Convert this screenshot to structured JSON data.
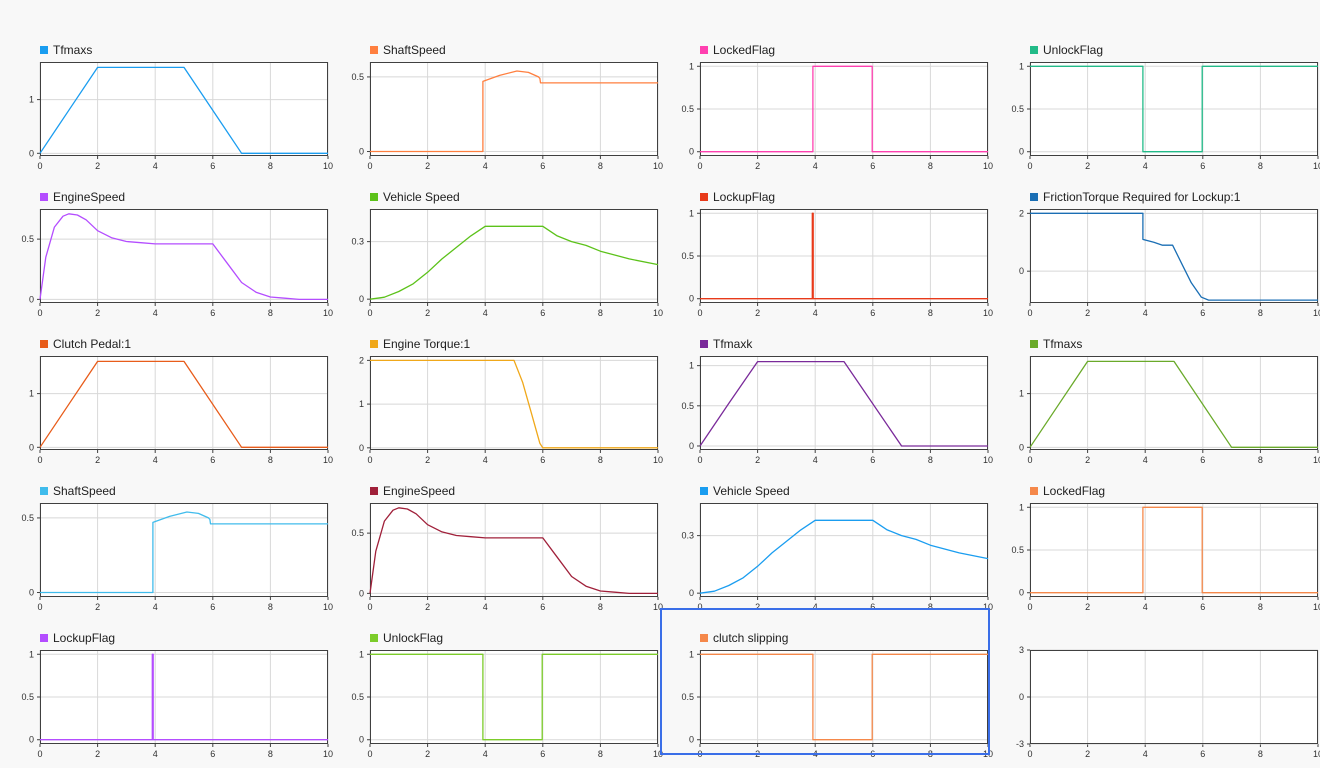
{
  "view": {
    "selected_panel": 18
  },
  "chart_data": [
    {
      "type": "line",
      "title": "Tfmaxs",
      "color": "#1a9df0",
      "xlim": [
        0,
        10
      ],
      "ylim": [
        -0.05,
        1.7
      ],
      "yticks": [
        0,
        1
      ],
      "xticks": [
        0,
        2,
        4,
        6,
        8,
        10
      ],
      "series": [
        {
          "name": "Tfmaxs",
          "x": [
            0,
            1,
            2,
            5,
            7,
            10
          ],
          "y": [
            0,
            0.8,
            1.6,
            1.6,
            0,
            0
          ]
        }
      ]
    },
    {
      "type": "line",
      "title": "ShaftSpeed",
      "color": "#ff7f3f",
      "xlim": [
        0,
        10
      ],
      "ylim": [
        -0.03,
        0.6
      ],
      "yticks": [
        0,
        0.5
      ],
      "xticks": [
        0,
        2,
        4,
        6,
        8,
        10
      ],
      "series": [
        {
          "name": "ShaftSpeed",
          "x": [
            0,
            3.92,
            3.92,
            4.5,
            5.1,
            5.5,
            5.85,
            5.9,
            5.92,
            10
          ],
          "y": [
            0,
            0,
            0.47,
            0.51,
            0.54,
            0.53,
            0.5,
            0.49,
            0.46,
            0.46
          ]
        }
      ]
    },
    {
      "type": "line",
      "title": "LockedFlag",
      "color": "#ff40b0",
      "xlim": [
        0,
        10
      ],
      "ylim": [
        -0.05,
        1.05
      ],
      "yticks": [
        0,
        0.5,
        1.0
      ],
      "xticks": [
        0,
        2,
        4,
        6,
        8,
        10
      ],
      "series": [
        {
          "name": "LockedFlag",
          "x": [
            0,
            3.92,
            3.92,
            5.98,
            5.98,
            10
          ],
          "y": [
            0,
            0,
            1,
            1,
            0,
            0
          ]
        }
      ]
    },
    {
      "type": "line",
      "title": "UnlockFlag",
      "color": "#22bb88",
      "xlim": [
        0,
        10
      ],
      "ylim": [
        -0.05,
        1.05
      ],
      "yticks": [
        0,
        0.5,
        1.0
      ],
      "xticks": [
        0,
        2,
        4,
        6,
        8,
        10
      ],
      "series": [
        {
          "name": "UnlockFlag",
          "x": [
            0,
            3.92,
            3.92,
            5.98,
            5.98,
            10
          ],
          "y": [
            1,
            1,
            0,
            0,
            1,
            1
          ]
        }
      ]
    },
    {
      "type": "line",
      "title": "EngineSpeed",
      "color": "#b44dff",
      "xlim": [
        0,
        10
      ],
      "ylim": [
        -0.03,
        0.75
      ],
      "yticks": [
        0,
        0.5
      ],
      "xticks": [
        0,
        2,
        4,
        6,
        8,
        10
      ],
      "series": [
        {
          "name": "EngineSpeed",
          "x": [
            0,
            0.2,
            0.5,
            0.8,
            1,
            1.3,
            1.6,
            2,
            2.5,
            3,
            3.5,
            4,
            4.5,
            5,
            5.5,
            6,
            6.5,
            7,
            7.5,
            8,
            8.5,
            9,
            9.5,
            10
          ],
          "y": [
            0,
            0.35,
            0.6,
            0.69,
            0.71,
            0.7,
            0.66,
            0.57,
            0.51,
            0.48,
            0.47,
            0.46,
            0.46,
            0.46,
            0.46,
            0.46,
            0.3,
            0.14,
            0.06,
            0.02,
            0.01,
            0,
            0,
            0
          ]
        }
      ]
    },
    {
      "type": "line",
      "title": "Vehicle Speed",
      "color": "#5cc21a",
      "xlim": [
        0,
        10
      ],
      "ylim": [
        -0.02,
        0.47
      ],
      "yticks": [
        0,
        0.3
      ],
      "xticks": [
        0,
        2,
        4,
        6,
        8,
        10
      ],
      "series": [
        {
          "name": "Vehicle Speed",
          "x": [
            0,
            0.5,
            1,
            1.5,
            2,
            2.5,
            3,
            3.5,
            4,
            5,
            6,
            6.5,
            7,
            7.5,
            8,
            9,
            10
          ],
          "y": [
            0,
            0.01,
            0.04,
            0.08,
            0.14,
            0.21,
            0.27,
            0.33,
            0.38,
            0.38,
            0.38,
            0.33,
            0.3,
            0.28,
            0.25,
            0.21,
            0.18
          ]
        }
      ]
    },
    {
      "type": "line",
      "title": "LockupFlag",
      "color": "#e83a1a",
      "xlim": [
        0,
        10
      ],
      "ylim": [
        -0.05,
        1.05
      ],
      "yticks": [
        0,
        0.5,
        1.0
      ],
      "xticks": [
        0,
        2,
        4,
        6,
        8,
        10
      ],
      "series": [
        {
          "name": "LockupFlag",
          "x": [
            0,
            3.9,
            3.9,
            3.93,
            3.93,
            10
          ],
          "y": [
            0,
            0,
            1,
            1,
            0,
            0
          ]
        }
      ]
    },
    {
      "type": "line",
      "title": "FrictionTorque Required for Lockup:1",
      "color": "#1a6eb4",
      "xlim": [
        0,
        10
      ],
      "ylim": [
        -1.1,
        2.15
      ],
      "yticks": [
        0,
        2
      ],
      "xticks": [
        0,
        2,
        4,
        6,
        8,
        10
      ],
      "series": [
        {
          "name": "FrictionTorque Required for Lockup:1",
          "x": [
            0,
            3.92,
            3.92,
            4.3,
            4.6,
            4.95,
            5.3,
            5.6,
            5.95,
            6.2,
            10
          ],
          "y": [
            2,
            2,
            1.1,
            1,
            0.9,
            0.9,
            0.2,
            -0.4,
            -0.9,
            -1,
            -1
          ]
        }
      ]
    },
    {
      "type": "line",
      "title": "Clutch Pedal:1",
      "color": "#e85c1a",
      "xlim": [
        0,
        10
      ],
      "ylim": [
        -0.05,
        1.7
      ],
      "yticks": [
        0,
        1
      ],
      "xticks": [
        0,
        2,
        4,
        6,
        8,
        10
      ],
      "series": [
        {
          "name": "Clutch Pedal:1",
          "x": [
            0,
            1,
            2,
            5,
            7,
            10
          ],
          "y": [
            0,
            0.8,
            1.6,
            1.6,
            0,
            0
          ]
        }
      ]
    },
    {
      "type": "line",
      "title": "Engine Torque:1",
      "color": "#f0a81a",
      "xlim": [
        0,
        10
      ],
      "ylim": [
        -0.05,
        2.1
      ],
      "yticks": [
        0,
        1,
        2
      ],
      "xticks": [
        0,
        2,
        4,
        6,
        8,
        10
      ],
      "series": [
        {
          "name": "Engine Torque:1",
          "x": [
            0,
            5,
            5.3,
            5.6,
            5.9,
            6,
            10
          ],
          "y": [
            2,
            2,
            1.5,
            0.8,
            0.1,
            0,
            0
          ]
        }
      ]
    },
    {
      "type": "line",
      "title": "Tfmaxk",
      "color": "#7a2a9a",
      "xlim": [
        0,
        10
      ],
      "ylim": [
        -0.05,
        1.12
      ],
      "yticks": [
        0,
        0.5,
        1.0
      ],
      "xticks": [
        0,
        2,
        4,
        6,
        8,
        10
      ],
      "series": [
        {
          "name": "Tfmaxk",
          "x": [
            0,
            1,
            2,
            5,
            7,
            10
          ],
          "y": [
            0,
            0.53,
            1.05,
            1.05,
            0,
            0
          ]
        }
      ]
    },
    {
      "type": "line",
      "title": "Tfmaxs",
      "color": "#6aaa2a",
      "xlim": [
        0,
        10
      ],
      "ylim": [
        -0.05,
        1.7
      ],
      "yticks": [
        0,
        1
      ],
      "xticks": [
        0,
        2,
        4,
        6,
        8,
        10
      ],
      "series": [
        {
          "name": "Tfmaxs",
          "x": [
            0,
            1,
            2,
            5,
            7,
            10
          ],
          "y": [
            0,
            0.8,
            1.6,
            1.6,
            0,
            0
          ]
        }
      ]
    },
    {
      "type": "line",
      "title": "ShaftSpeed",
      "color": "#40bcec",
      "xlim": [
        0,
        10
      ],
      "ylim": [
        -0.03,
        0.6
      ],
      "yticks": [
        0,
        0.5
      ],
      "xticks": [
        0,
        2,
        4,
        6,
        8,
        10
      ],
      "series": [
        {
          "name": "ShaftSpeed",
          "x": [
            0,
            3.92,
            3.92,
            4.5,
            5.1,
            5.5,
            5.85,
            5.9,
            5.92,
            10
          ],
          "y": [
            0,
            0,
            0.47,
            0.51,
            0.54,
            0.53,
            0.5,
            0.49,
            0.46,
            0.46
          ]
        }
      ]
    },
    {
      "type": "line",
      "title": "EngineSpeed",
      "color": "#a0203a",
      "xlim": [
        0,
        10
      ],
      "ylim": [
        -0.03,
        0.75
      ],
      "yticks": [
        0,
        0.5
      ],
      "xticks": [
        0,
        2,
        4,
        6,
        8,
        10
      ],
      "series": [
        {
          "name": "EngineSpeed",
          "x": [
            0,
            0.2,
            0.5,
            0.8,
            1,
            1.3,
            1.6,
            2,
            2.5,
            3,
            3.5,
            4,
            4.5,
            5,
            5.5,
            6,
            6.5,
            7,
            7.5,
            8,
            8.5,
            9,
            9.5,
            10
          ],
          "y": [
            0,
            0.35,
            0.6,
            0.69,
            0.71,
            0.7,
            0.66,
            0.57,
            0.51,
            0.48,
            0.47,
            0.46,
            0.46,
            0.46,
            0.46,
            0.46,
            0.3,
            0.14,
            0.06,
            0.02,
            0.01,
            0,
            0,
            0
          ]
        }
      ]
    },
    {
      "type": "line",
      "title": "Vehicle Speed",
      "color": "#1a9df0",
      "xlim": [
        0,
        10
      ],
      "ylim": [
        -0.02,
        0.47
      ],
      "yticks": [
        0,
        0.3
      ],
      "xticks": [
        0,
        2,
        4,
        6,
        8,
        10
      ],
      "series": [
        {
          "name": "Vehicle Speed",
          "x": [
            0,
            0.5,
            1,
            1.5,
            2,
            2.5,
            3,
            3.5,
            4,
            5,
            6,
            6.5,
            7,
            7.5,
            8,
            9,
            10
          ],
          "y": [
            0,
            0.01,
            0.04,
            0.08,
            0.14,
            0.21,
            0.27,
            0.33,
            0.38,
            0.38,
            0.38,
            0.33,
            0.3,
            0.28,
            0.25,
            0.21,
            0.18
          ]
        }
      ]
    },
    {
      "type": "line",
      "title": "LockedFlag",
      "color": "#f5884a",
      "xlim": [
        0,
        10
      ],
      "ylim": [
        -0.05,
        1.05
      ],
      "yticks": [
        0,
        0.5,
        1.0
      ],
      "xticks": [
        0,
        2,
        4,
        6,
        8,
        10
      ],
      "series": [
        {
          "name": "LockedFlag",
          "x": [
            0,
            3.92,
            3.92,
            5.98,
            5.98,
            10
          ],
          "y": [
            0,
            0,
            1,
            1,
            0,
            0
          ]
        }
      ]
    },
    {
      "type": "line",
      "title": "LockupFlag",
      "color": "#b44dff",
      "xlim": [
        0,
        10
      ],
      "ylim": [
        -0.05,
        1.05
      ],
      "yticks": [
        0,
        0.5,
        1.0
      ],
      "xticks": [
        0,
        2,
        4,
        6,
        8,
        10
      ],
      "series": [
        {
          "name": "LockupFlag",
          "x": [
            0,
            3.9,
            3.9,
            3.93,
            3.93,
            10
          ],
          "y": [
            0,
            0,
            1,
            1,
            0,
            0
          ]
        }
      ]
    },
    {
      "type": "line",
      "title": "UnlockFlag",
      "color": "#7ccc2a",
      "xlim": [
        0,
        10
      ],
      "ylim": [
        -0.05,
        1.05
      ],
      "yticks": [
        0,
        0.5,
        1.0
      ],
      "xticks": [
        0,
        2,
        4,
        6,
        8,
        10
      ],
      "series": [
        {
          "name": "UnlockFlag",
          "x": [
            0,
            3.92,
            3.92,
            5.98,
            5.98,
            10
          ],
          "y": [
            1,
            1,
            0,
            0,
            1,
            1
          ]
        }
      ]
    },
    {
      "type": "line",
      "title": "clutch slipping",
      "color": "#f5884a",
      "xlim": [
        0,
        10
      ],
      "ylim": [
        -0.05,
        1.05
      ],
      "yticks": [
        0,
        0.5,
        1.0
      ],
      "xticks": [
        0,
        2,
        4,
        6,
        8,
        10
      ],
      "series": [
        {
          "name": "clutch slipping",
          "x": [
            0,
            3.92,
            3.92,
            5.98,
            5.98,
            10
          ],
          "y": [
            1,
            1,
            0,
            0,
            1,
            1
          ]
        }
      ]
    },
    {
      "type": "line",
      "title": "",
      "color": "",
      "xlim": [
        0,
        10
      ],
      "ylim": [
        -3,
        3
      ],
      "yticks": [
        -3,
        0,
        3
      ],
      "xticks": [
        0,
        2,
        4,
        6,
        8,
        10
      ],
      "series": []
    }
  ]
}
